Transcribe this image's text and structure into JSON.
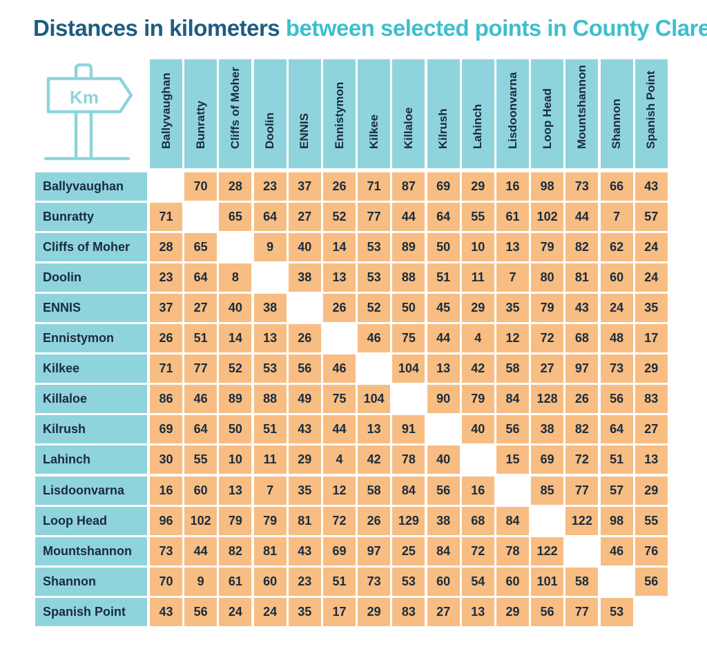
{
  "title": {
    "part1": "Distances in kilometers",
    "part2": "between selected points in County Clare"
  },
  "sign": {
    "label": "Km",
    "icon": "signpost-icon",
    "color": "#8fd4dc"
  },
  "colors": {
    "header": "#8fd4dc",
    "cell": "#f8bd82",
    "title_dark": "#1d5d80",
    "title_light": "#3cbfce"
  },
  "places": [
    "Ballyvaughan",
    "Bunratty",
    "Cliffs of Moher",
    "Doolin",
    "ENNIS",
    "Ennistymon",
    "Kilkee",
    "Killaloe",
    "Kilrush",
    "Lahinch",
    "Lisdoonvarna",
    "Loop Head",
    "Mountshannon",
    "Shannon",
    "Spanish Point"
  ],
  "matrix": [
    [
      "",
      "70",
      "28",
      "23",
      "37",
      "26",
      "71",
      "87",
      "69",
      "29",
      "16",
      "98",
      "73",
      "66",
      "43"
    ],
    [
      "71",
      "",
      "65",
      "64",
      "27",
      "52",
      "77",
      "44",
      "64",
      "55",
      "61",
      "102",
      "44",
      "7",
      "57"
    ],
    [
      "28",
      "65",
      "",
      "9",
      "40",
      "14",
      "53",
      "89",
      "50",
      "10",
      "13",
      "79",
      "82",
      "62",
      "24"
    ],
    [
      "23",
      "64",
      "8",
      "",
      "38",
      "13",
      "53",
      "88",
      "51",
      "11",
      "7",
      "80",
      "81",
      "60",
      "24"
    ],
    [
      "37",
      "27",
      "40",
      "38",
      "",
      "26",
      "52",
      "50",
      "45",
      "29",
      "35",
      "79",
      "43",
      "24",
      "35"
    ],
    [
      "26",
      "51",
      "14",
      "13",
      "26",
      "",
      "46",
      "75",
      "44",
      "4",
      "12",
      "72",
      "68",
      "48",
      "17"
    ],
    [
      "71",
      "77",
      "52",
      "53",
      "56",
      "46",
      "",
      "104",
      "13",
      "42",
      "58",
      "27",
      "97",
      "73",
      "29"
    ],
    [
      "86",
      "46",
      "89",
      "88",
      "49",
      "75",
      "104",
      "",
      "90",
      "79",
      "84",
      "128",
      "26",
      "56",
      "83"
    ],
    [
      "69",
      "64",
      "50",
      "51",
      "43",
      "44",
      "13",
      "91",
      "",
      "40",
      "56",
      "38",
      "82",
      "64",
      "27"
    ],
    [
      "30",
      "55",
      "10",
      "11",
      "29",
      "4",
      "42",
      "78",
      "40",
      "",
      "15",
      "69",
      "72",
      "51",
      "13"
    ],
    [
      "16",
      "60",
      "13",
      "7",
      "35",
      "12",
      "58",
      "84",
      "56",
      "16",
      "",
      "85",
      "77",
      "57",
      "29"
    ],
    [
      "96",
      "102",
      "79",
      "79",
      "81",
      "72",
      "26",
      "129",
      "38",
      "68",
      "84",
      "",
      "122",
      "98",
      "55"
    ],
    [
      "73",
      "44",
      "82",
      "81",
      "43",
      "69",
      "97",
      "25",
      "84",
      "72",
      "78",
      "122",
      "",
      "46",
      "76"
    ],
    [
      "70",
      "9",
      "61",
      "60",
      "23",
      "51",
      "73",
      "53",
      "60",
      "54",
      "60",
      "101",
      "58",
      "",
      "56"
    ],
    [
      "43",
      "56",
      "24",
      "24",
      "35",
      "17",
      "29",
      "83",
      "27",
      "13",
      "29",
      "56",
      "77",
      "53",
      ""
    ]
  ]
}
